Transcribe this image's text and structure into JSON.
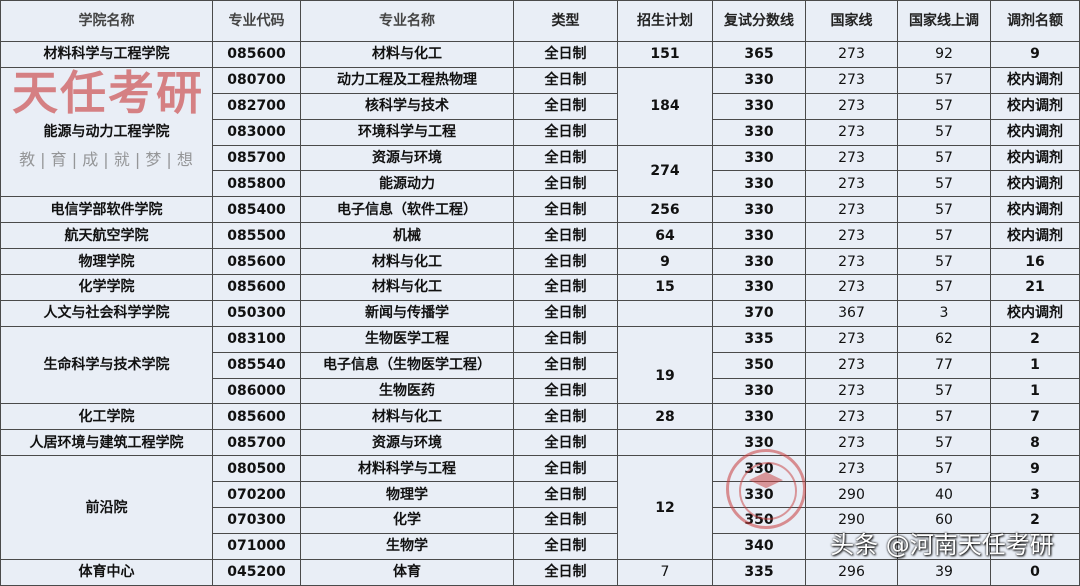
{
  "headers": [
    "学院名称",
    "专业代码",
    "专业名称",
    "类型",
    "招生计划",
    "复试分数线",
    "国家线",
    "国家线上调",
    "调剂名额"
  ],
  "rows": [
    {
      "college": "材料科学与工程学院",
      "college_span": 1,
      "code": "085600",
      "major": "材料与化工",
      "type": "全日制",
      "plan": "151",
      "plan_span": 1,
      "score": "365",
      "national": "273",
      "raise": "92",
      "transfer": "9"
    },
    {
      "college": "能源与动力工程学院",
      "college_span": 5,
      "code": "080700",
      "major": "动力工程及工程热物理",
      "type": "全日制",
      "plan": "184",
      "plan_span": 3,
      "score": "330",
      "national": "273",
      "raise": "57",
      "transfer": "校内调剂"
    },
    {
      "code": "082700",
      "major": "核科学与技术",
      "type": "全日制",
      "score": "330",
      "national": "273",
      "raise": "57",
      "transfer": "校内调剂"
    },
    {
      "code": "083000",
      "major": "环境科学与工程",
      "type": "全日制",
      "score": "330",
      "national": "273",
      "raise": "57",
      "transfer": "校内调剂"
    },
    {
      "code": "085700",
      "major": "资源与环境",
      "type": "全日制",
      "plan": "274",
      "plan_span": 2,
      "score": "330",
      "national": "273",
      "raise": "57",
      "transfer": "校内调剂"
    },
    {
      "code": "085800",
      "major": "能源动力",
      "type": "全日制",
      "score": "330",
      "national": "273",
      "raise": "57",
      "transfer": "校内调剂"
    },
    {
      "college": "电信学部软件学院",
      "college_span": 1,
      "code": "085400",
      "major": "电子信息（软件工程）",
      "type": "全日制",
      "plan": "256",
      "plan_span": 1,
      "score": "330",
      "national": "273",
      "raise": "57",
      "transfer": "校内调剂"
    },
    {
      "college": "航天航空学院",
      "college_span": 1,
      "code": "085500",
      "major": "机械",
      "type": "全日制",
      "plan": "64",
      "plan_span": 1,
      "score": "330",
      "national": "273",
      "raise": "57",
      "transfer": "校内调剂"
    },
    {
      "college": "物理学院",
      "college_span": 1,
      "code": "085600",
      "major": "材料与化工",
      "type": "全日制",
      "plan": "9",
      "plan_span": 1,
      "score": "330",
      "national": "273",
      "raise": "57",
      "transfer": "16"
    },
    {
      "college": "化学学院",
      "college_span": 1,
      "code": "085600",
      "major": "材料与化工",
      "type": "全日制",
      "plan": "15",
      "plan_span": 1,
      "score": "330",
      "national": "273",
      "raise": "57",
      "transfer": "21"
    },
    {
      "college": "人文与社会科学学院",
      "college_span": 1,
      "code": "050300",
      "major": "新闻与传播学",
      "type": "全日制",
      "plan": "",
      "plan_span": 1,
      "score": "370",
      "national": "367",
      "raise": "3",
      "transfer": "校内调剂"
    },
    {
      "college": "生命科学与技术学院",
      "college_span": 3,
      "code": "083100",
      "major": "生物医学工程",
      "type": "全日制",
      "plan": "19",
      "plan_span": 3,
      "score": "335",
      "national": "273",
      "raise": "62",
      "transfer": "2"
    },
    {
      "code": "085540",
      "major": "电子信息（生物医学工程）",
      "type": "全日制",
      "score": "350",
      "national": "273",
      "raise": "77",
      "transfer": "1"
    },
    {
      "code": "086000",
      "major": "生物医药",
      "type": "全日制",
      "score": "330",
      "national": "273",
      "raise": "57",
      "transfer": "1"
    },
    {
      "college": "化工学院",
      "college_span": 1,
      "code": "085600",
      "major": "材料与化工",
      "type": "全日制",
      "plan": "28",
      "plan_span": 1,
      "score": "330",
      "national": "273",
      "raise": "57",
      "transfer": "7"
    },
    {
      "college": "人居环境与建筑工程学院",
      "college_span": 1,
      "code": "085700",
      "major": "资源与环境",
      "type": "全日制",
      "plan": "",
      "plan_span": 1,
      "score": "330",
      "national": "273",
      "raise": "57",
      "transfer": "8"
    },
    {
      "college": "前沿院",
      "college_span": 4,
      "code": "080500",
      "major": "材料科学与工程",
      "type": "全日制",
      "plan": "12",
      "plan_span": 4,
      "score": "330",
      "national": "273",
      "raise": "57",
      "transfer": "9"
    },
    {
      "code": "070200",
      "major": "物理学",
      "type": "全日制",
      "score": "330",
      "national": "290",
      "raise": "40",
      "transfer": "3"
    },
    {
      "code": "070300",
      "major": "化学",
      "type": "全日制",
      "score": "350",
      "national": "290",
      "raise": "60",
      "transfer": "2"
    },
    {
      "code": "071000",
      "major": "生物学",
      "type": "全日制",
      "score": "340",
      "national": "",
      "raise": "",
      "transfer": ""
    },
    {
      "college": "体育中心",
      "college_span": 1,
      "code": "045200",
      "major": "体育",
      "type": "全日制",
      "plan": "7",
      "plan_span": 1,
      "plan_normal": true,
      "score": "335",
      "national": "296",
      "raise": "39",
      "transfer": "0"
    }
  ],
  "watermark": {
    "title": "天任考研",
    "slogan": "教 | 育 | 成 | 就 | 梦 | 想",
    "logo_text": "TIANREN EDUCATION 天任教育",
    "source": "头条 @河南天任考研",
    "color": "#c83737"
  }
}
